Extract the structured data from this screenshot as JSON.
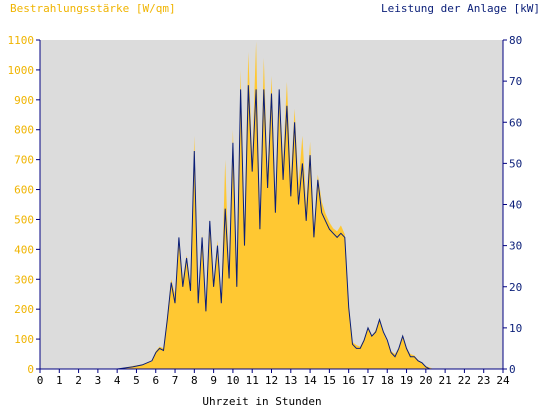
{
  "chart_data": {
    "type": "area",
    "left_axis_label": "Bestrahlungsstärke [W/qm]",
    "right_axis_label": "Leistung der Anlage [kW]",
    "xlabel": "Uhrzeit in Stunden",
    "xlim": [
      0,
      24
    ],
    "ylim_left": [
      0,
      1100
    ],
    "ylim_right": [
      0,
      80
    ],
    "x_ticks": [
      "0",
      "1",
      "2",
      "3",
      "4",
      "5",
      "6",
      "7",
      "8",
      "9",
      "10",
      "11",
      "12",
      "13",
      "14",
      "15",
      "16",
      "17",
      "18",
      "19",
      "20",
      "21",
      "22",
      "23",
      "24"
    ],
    "y_ticks_left": [
      "0",
      "100",
      "200",
      "300",
      "400",
      "500",
      "600",
      "700",
      "800",
      "900",
      "1000",
      "1100"
    ],
    "y_ticks_right": [
      "0",
      "10",
      "20",
      "30",
      "40",
      "50",
      "60",
      "70",
      "80"
    ],
    "grid": "none",
    "background_color": "#dcdcdc",
    "colors": {
      "irradiance": "#ffc832",
      "power": "#0a1e78",
      "left_axis_text": "#f0b400",
      "right_axis_text": "#0a1e78"
    },
    "series": [
      {
        "name": "Bestrahlungsstärke [W/qm]",
        "axis": "left",
        "x": [
          0,
          4,
          4.8,
          5.3,
          5.8,
          6.0,
          6.2,
          6.4,
          6.6,
          6.8,
          7.0,
          7.2,
          7.4,
          7.6,
          7.8,
          8.0,
          8.2,
          8.4,
          8.6,
          8.8,
          9.0,
          9.2,
          9.4,
          9.6,
          9.8,
          10.0,
          10.2,
          10.4,
          10.6,
          10.8,
          11.0,
          11.2,
          11.4,
          11.6,
          11.8,
          12.0,
          12.2,
          12.4,
          12.6,
          12.8,
          13.0,
          13.2,
          13.4,
          13.6,
          13.8,
          14.0,
          14.2,
          14.4,
          14.6,
          14.8,
          15.0,
          15.2,
          15.4,
          15.6,
          15.8,
          16.0,
          16.2,
          16.4,
          16.6,
          16.8,
          17.0,
          17.2,
          17.4,
          17.6,
          17.8,
          18.0,
          18.2,
          18.4,
          18.6,
          18.8,
          19.0,
          19.2,
          19.4,
          19.6,
          19.8,
          20.0,
          20.2,
          20.4,
          24
        ],
        "values": [
          0,
          0,
          10,
          15,
          25,
          60,
          75,
          70,
          180,
          300,
          250,
          420,
          300,
          380,
          280,
          780,
          240,
          450,
          200,
          500,
          280,
          430,
          230,
          700,
          310,
          800,
          300,
          1000,
          450,
          1060,
          700,
          1095,
          500,
          1040,
          650,
          980,
          560,
          930,
          700,
          960,
          640,
          870,
          620,
          780,
          550,
          760,
          470,
          650,
          560,
          520,
          490,
          470,
          460,
          480,
          450,
          200,
          90,
          80,
          75,
          100,
          140,
          110,
          130,
          165,
          120,
          90,
          60,
          50,
          70,
          115,
          70,
          50,
          45,
          30,
          20,
          10,
          5,
          0,
          0
        ]
      },
      {
        "name": "Leistung der Anlage [kW]",
        "axis": "right",
        "x": [
          0,
          4,
          4.8,
          5.3,
          5.8,
          6.0,
          6.2,
          6.4,
          6.6,
          6.8,
          7.0,
          7.2,
          7.4,
          7.6,
          7.8,
          8.0,
          8.2,
          8.4,
          8.6,
          8.8,
          9.0,
          9.2,
          9.4,
          9.6,
          9.8,
          10.0,
          10.2,
          10.4,
          10.6,
          10.8,
          11.0,
          11.2,
          11.4,
          11.6,
          11.8,
          12.0,
          12.2,
          12.4,
          12.6,
          12.8,
          13.0,
          13.2,
          13.4,
          13.6,
          13.8,
          14.0,
          14.2,
          14.4,
          14.6,
          14.8,
          15.0,
          15.2,
          15.4,
          15.6,
          15.8,
          16.0,
          16.2,
          16.4,
          16.6,
          16.8,
          17.0,
          17.2,
          17.4,
          17.6,
          17.8,
          18.0,
          18.2,
          18.4,
          18.6,
          18.8,
          19.0,
          19.2,
          19.4,
          19.6,
          19.8,
          20.0,
          20.2,
          20.4,
          24
        ],
        "values": [
          0,
          0,
          0.5,
          1,
          2,
          4,
          5,
          4.5,
          12,
          21,
          16,
          32,
          20,
          27,
          19,
          53,
          16,
          32,
          14,
          36,
          20,
          30,
          16,
          39,
          22,
          55,
          20,
          68,
          30,
          69,
          48,
          68,
          34,
          68,
          44,
          67,
          38,
          68,
          46,
          64,
          42,
          60,
          40,
          50,
          36,
          52,
          32,
          46,
          38,
          36,
          34,
          33,
          32,
          33,
          32,
          15,
          6,
          5,
          5,
          7,
          10,
          8,
          9,
          12,
          9,
          7,
          4,
          3,
          5,
          8,
          5,
          3,
          3,
          2,
          1.5,
          0.5,
          0,
          0,
          0
        ]
      }
    ]
  }
}
